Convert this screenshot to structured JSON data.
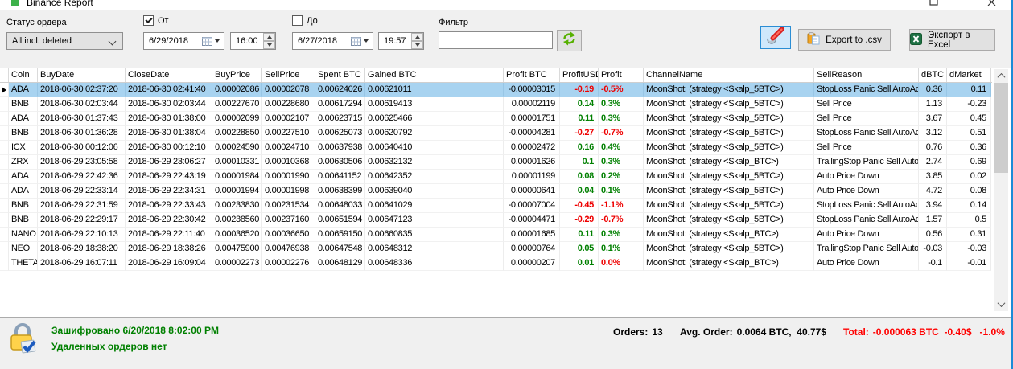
{
  "window": {
    "title": "Binance Report"
  },
  "toolbar": {
    "status_label": "Статус ордера",
    "status_value": "All incl. deleted",
    "from_label": "От",
    "from_checked": true,
    "from_date": "6/29/2018",
    "from_time": "16:00",
    "to_label": "До",
    "to_checked": false,
    "to_date": "6/27/2018",
    "to_time": "19:57",
    "filter_label": "Фильтр",
    "filter_value": "",
    "export_csv_label": "Export to .csv",
    "export_excel_label": "Экспорт в Excel"
  },
  "table": {
    "columns": [
      "Coin",
      "BuyDate",
      "CloseDate",
      "BuyPrice",
      "SellPrice",
      "Spent BTC",
      "Gained BTC",
      "Profit BTC",
      "ProfitUSD",
      "Profit",
      "ChannelName",
      "SellReason",
      "dBTC",
      "dMarket"
    ],
    "rows": [
      {
        "selected": true,
        "coin": "ADA",
        "buy_date": "2018-06-30 02:37:20",
        "close_date": "2018-06-30 02:41:40",
        "buy_price": "0.00002086",
        "sell_price": "0.00002078",
        "spent_btc": "0.00624026",
        "gained_btc": "0.00621011",
        "profit_btc": "-0.00003015",
        "profit_usd": "-0.19",
        "profit_pct": "-0.5%",
        "usd_color": "neg",
        "pct_color": "neg",
        "channel": "MoonShot: (strategy <Skalp_5BTC>)",
        "sell_reason": "StopLoss Panic Sell AutoAc",
        "d_btc": "0.36",
        "d_market": "0.11"
      },
      {
        "coin": "BNB",
        "buy_date": "2018-06-30 02:03:44",
        "close_date": "2018-06-30 02:03:44",
        "buy_price": "0.00227670",
        "sell_price": "0.00228680",
        "spent_btc": "0.00617294",
        "gained_btc": "0.00619413",
        "profit_btc": "0.00002119",
        "profit_usd": "0.14",
        "profit_pct": "0.3%",
        "usd_color": "pos",
        "pct_color": "pos",
        "channel": "MoonShot: (strategy <Skalp_5BTC>)",
        "sell_reason": "Sell Price",
        "d_btc": "1.13",
        "d_market": "-0.23"
      },
      {
        "coin": "ADA",
        "buy_date": "2018-06-30 01:37:43",
        "close_date": "2018-06-30 01:38:00",
        "buy_price": "0.00002099",
        "sell_price": "0.00002107",
        "spent_btc": "0.00623715",
        "gained_btc": "0.00625466",
        "profit_btc": "0.00001751",
        "profit_usd": "0.11",
        "profit_pct": "0.3%",
        "usd_color": "pos",
        "pct_color": "pos",
        "channel": "MoonShot: (strategy <Skalp_5BTC>)",
        "sell_reason": "Sell Price",
        "d_btc": "3.67",
        "d_market": "0.45"
      },
      {
        "coin": "BNB",
        "buy_date": "2018-06-30 01:36:28",
        "close_date": "2018-06-30 01:38:04",
        "buy_price": "0.00228850",
        "sell_price": "0.00227510",
        "spent_btc": "0.00625073",
        "gained_btc": "0.00620792",
        "profit_btc": "-0.00004281",
        "profit_usd": "-0.27",
        "profit_pct": "-0.7%",
        "usd_color": "neg",
        "pct_color": "neg",
        "channel": "MoonShot: (strategy <Skalp_5BTC>)",
        "sell_reason": "StopLoss Panic Sell AutoAc",
        "d_btc": "3.12",
        "d_market": "0.51"
      },
      {
        "coin": "ICX",
        "buy_date": "2018-06-30 00:12:06",
        "close_date": "2018-06-30 00:12:10",
        "buy_price": "0.00024590",
        "sell_price": "0.00024710",
        "spent_btc": "0.00637938",
        "gained_btc": "0.00640410",
        "profit_btc": "0.00002472",
        "profit_usd": "0.16",
        "profit_pct": "0.4%",
        "usd_color": "pos",
        "pct_color": "pos",
        "channel": "MoonShot: (strategy <Skalp_5BTC>)",
        "sell_reason": "Sell Price",
        "d_btc": "0.76",
        "d_market": "0.36"
      },
      {
        "coin": "ZRX",
        "buy_date": "2018-06-29 23:05:58",
        "close_date": "2018-06-29 23:06:27",
        "buy_price": "0.00010331",
        "sell_price": "0.00010368",
        "spent_btc": "0.00630506",
        "gained_btc": "0.00632132",
        "profit_btc": "0.00001626",
        "profit_usd": "0.1",
        "profit_pct": "0.3%",
        "usd_color": "pos",
        "pct_color": "pos",
        "channel": "MoonShot: (strategy <Skalp_BTC>)",
        "sell_reason": "TrailingStop Panic Sell Auto",
        "d_btc": "2.74",
        "d_market": "0.69"
      },
      {
        "coin": "ADA",
        "buy_date": "2018-06-29 22:42:36",
        "close_date": "2018-06-29 22:43:19",
        "buy_price": "0.00001984",
        "sell_price": "0.00001990",
        "spent_btc": "0.00641152",
        "gained_btc": "0.00642352",
        "profit_btc": "0.00001199",
        "profit_usd": "0.08",
        "profit_pct": "0.2%",
        "usd_color": "pos",
        "pct_color": "pos",
        "channel": "MoonShot: (strategy <Skalp_5BTC>)",
        "sell_reason": "Auto Price Down",
        "d_btc": "3.85",
        "d_market": "0.02"
      },
      {
        "coin": "ADA",
        "buy_date": "2018-06-29 22:33:14",
        "close_date": "2018-06-29 22:34:31",
        "buy_price": "0.00001994",
        "sell_price": "0.00001998",
        "spent_btc": "0.00638399",
        "gained_btc": "0.00639040",
        "profit_btc": "0.00000641",
        "profit_usd": "0.04",
        "profit_pct": "0.1%",
        "usd_color": "pos",
        "pct_color": "pos",
        "channel": "MoonShot: (strategy <Skalp_5BTC>)",
        "sell_reason": "Auto Price Down",
        "d_btc": "4.72",
        "d_market": "0.08"
      },
      {
        "coin": "BNB",
        "buy_date": "2018-06-29 22:31:59",
        "close_date": "2018-06-29 22:33:43",
        "buy_price": "0.00233830",
        "sell_price": "0.00231534",
        "spent_btc": "0.00648033",
        "gained_btc": "0.00641029",
        "profit_btc": "-0.00007004",
        "profit_usd": "-0.45",
        "profit_pct": "-1.1%",
        "usd_color": "neg",
        "pct_color": "neg",
        "channel": "MoonShot: (strategy <Skalp_5BTC>)",
        "sell_reason": "StopLoss Panic Sell AutoAc",
        "d_btc": "3.94",
        "d_market": "0.14"
      },
      {
        "coin": "BNB",
        "buy_date": "2018-06-29 22:29:17",
        "close_date": "2018-06-29 22:30:42",
        "buy_price": "0.00238560",
        "sell_price": "0.00237160",
        "spent_btc": "0.00651594",
        "gained_btc": "0.00647123",
        "profit_btc": "-0.00004471",
        "profit_usd": "-0.29",
        "profit_pct": "-0.7%",
        "usd_color": "neg",
        "pct_color": "neg",
        "channel": "MoonShot: (strategy <Skalp_5BTC>)",
        "sell_reason": "StopLoss Panic Sell AutoAc",
        "d_btc": "1.57",
        "d_market": "0.5"
      },
      {
        "coin": "NANO",
        "buy_date": "2018-06-29 22:10:13",
        "close_date": "2018-06-29 22:11:40",
        "buy_price": "0.00036520",
        "sell_price": "0.00036650",
        "spent_btc": "0.00659150",
        "gained_btc": "0.00660835",
        "profit_btc": "0.00001685",
        "profit_usd": "0.11",
        "profit_pct": "0.3%",
        "usd_color": "pos",
        "pct_color": "pos",
        "channel": "MoonShot: (strategy <Skalp_BTC>)",
        "sell_reason": "Auto Price Down",
        "d_btc": "0.56",
        "d_market": "0.31"
      },
      {
        "coin": "NEO",
        "buy_date": "2018-06-29 18:38:20",
        "close_date": "2018-06-29 18:38:26",
        "buy_price": "0.00475900",
        "sell_price": "0.00476938",
        "spent_btc": "0.00647548",
        "gained_btc": "0.00648312",
        "profit_btc": "0.00000764",
        "profit_usd": "0.05",
        "profit_pct": "0.1%",
        "usd_color": "pos",
        "pct_color": "pos",
        "channel": "MoonShot: (strategy <Skalp_5BTC>)",
        "sell_reason": "TrailingStop Panic Sell Auto",
        "d_btc": "-0.03",
        "d_market": "-0.03"
      },
      {
        "coin": "THETA",
        "buy_date": "2018-06-29 16:07:11",
        "close_date": "2018-06-29 16:09:04",
        "buy_price": "0.00002273",
        "sell_price": "0.00002276",
        "spent_btc": "0.00648129",
        "gained_btc": "0.00648336",
        "profit_btc": "0.00000207",
        "profit_usd": "0.01",
        "profit_pct": "0.0%",
        "usd_color": "pos",
        "pct_color": "neg",
        "channel": "MoonShot: (strategy <Skalp_BTC>)",
        "sell_reason": "Auto Price Down",
        "d_btc": "-0.1",
        "d_market": "-0.01"
      }
    ]
  },
  "statusbar": {
    "encrypted_text": "Зашифровано 6/20/2018 8:02:00 PM",
    "deleted_orders_text": "Удаленных ордеров нет",
    "orders_label": "Orders:",
    "orders_value": "13",
    "avg_label": "Avg. Order:",
    "avg_value": "0.0064 BTC,  40.77$",
    "total_label": "Total:",
    "total_value": "-0.000063 BTC  -0.40$   -1.0%"
  },
  "colors": {
    "positive": "#008000",
    "negative": "#ee0000",
    "selection": "#a8d3f0",
    "status_green": "#008000",
    "total_red": "#ff0000",
    "accent_border": "#1b8bd7"
  }
}
